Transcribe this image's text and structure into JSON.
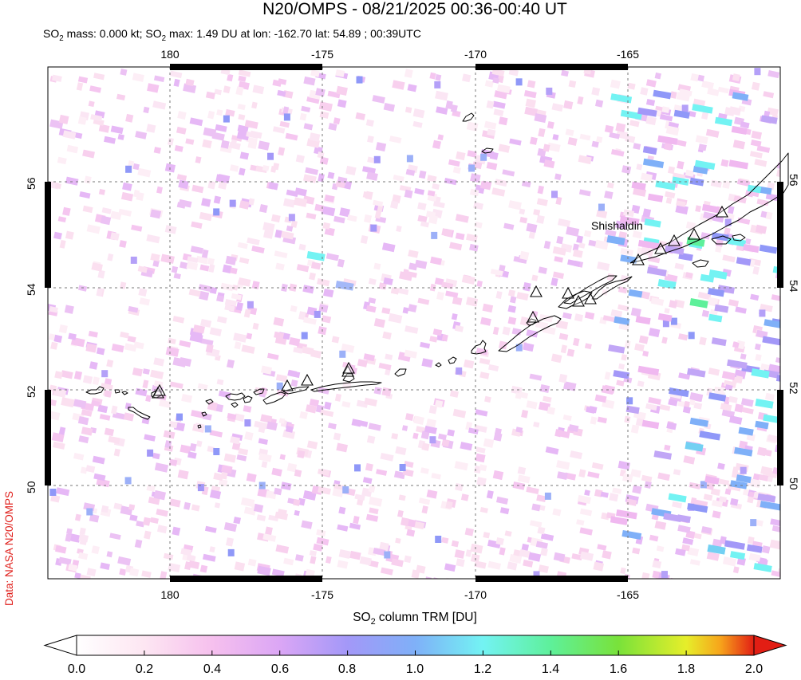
{
  "title": "N20/OMPS - 08/21/2025 00:36-00:40 UT",
  "subtitle": {
    "part1": "SO",
    "sub1": "2",
    "part2": " mass: 0.000 kt; SO",
    "sub2": "2",
    "part3": " max: 1.49 DU at lon: -162.70 lat: 54.89 ; 00:39UTC"
  },
  "credit": "Data: NASA N20/OMPS",
  "map": {
    "lon_range": [
      176,
      -160
    ],
    "lat_range": [
      48.2,
      58.5
    ],
    "lon_ticks": [
      180,
      -175,
      -170,
      -165
    ],
    "lon_tick_labels": [
      "180",
      "-175",
      "-170",
      "-165"
    ],
    "lat_ticks": [
      56,
      54,
      52,
      50
    ],
    "lat_tick_labels": [
      "56",
      "54",
      "52",
      "50"
    ],
    "volcano_label": "Shishaldin",
    "volcanoes_marked": 16
  },
  "colorbar": {
    "title_part1": "SO",
    "title_sub": "2",
    "title_part2": " column TRM [DU]",
    "min": 0.0,
    "max": 2.0,
    "tick_labels": [
      "0.0",
      "0.2",
      "0.4",
      "0.6",
      "0.8",
      "1.0",
      "1.2",
      "1.4",
      "1.6",
      "1.8",
      "2.0"
    ],
    "colors": [
      "#ffffff",
      "#fde6f2",
      "#f6c0ee",
      "#dba6f5",
      "#a398f8",
      "#7fb0f8",
      "#73f3f3",
      "#5ef09a",
      "#79e23a",
      "#e6ee2a",
      "#f7a51b",
      "#f0491a",
      "#e21e14"
    ]
  }
}
